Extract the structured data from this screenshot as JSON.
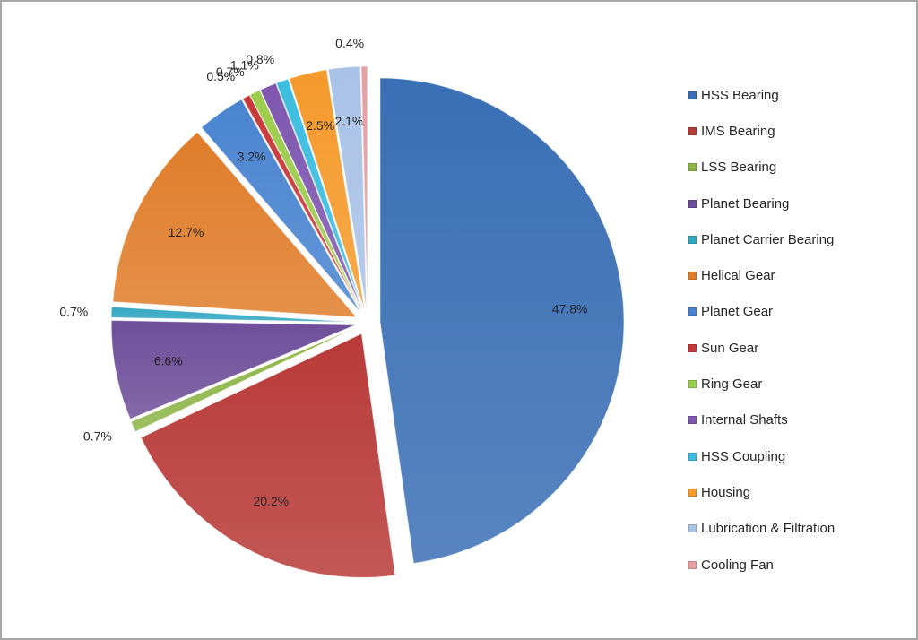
{
  "chart_data": {
    "type": "pie",
    "title": "",
    "start_angle_deg": 0,
    "direction": "clockwise",
    "exploded": true,
    "legend_position": "right",
    "categories": [
      "HSS Bearing",
      "IMS Bearing",
      "LSS Bearing",
      "Planet Bearing",
      "Planet Carrier Bearing",
      "Helical Gear",
      "Planet Gear",
      "Sun Gear",
      "Ring Gear",
      "Internal Shafts",
      "HSS Coupling",
      "Housing",
      "Lubrication & Filtration",
      "Cooling Fan"
    ],
    "values": [
      47.8,
      20.2,
      0.7,
      6.6,
      0.7,
      12.7,
      3.2,
      0.5,
      0.7,
      1.1,
      0.8,
      2.5,
      2.1,
      0.4
    ],
    "labels": [
      "47.8%",
      "20.2%",
      "0.7%",
      "6.6%",
      "0.7%",
      "12.7%",
      "3.2%",
      "0.5%",
      "0.7%",
      "1.1%",
      "0.8%",
      "2.5%",
      "2.1%",
      "0.4%"
    ],
    "colors": [
      "#3a6fb5",
      "#b83a38",
      "#8cb446",
      "#6e4e9a",
      "#32a7c2",
      "#e07d2a",
      "#4a84d0",
      "#c8383a",
      "#9ccc4c",
      "#7f57b0",
      "#3cbde0",
      "#f59a2c",
      "#a9c2e6",
      "#e4a0a2"
    ]
  },
  "legend": {
    "items": [
      {
        "label": "HSS Bearing",
        "color": "#3a6fb5"
      },
      {
        "label": "IMS Bearing",
        "color": "#b83a38"
      },
      {
        "label": "LSS Bearing",
        "color": "#8cb446"
      },
      {
        "label": "Planet Bearing",
        "color": "#6e4e9a"
      },
      {
        "label": "Planet Carrier Bearing",
        "color": "#32a7c2"
      },
      {
        "label": "Helical Gear",
        "color": "#e07d2a"
      },
      {
        "label": "Planet Gear",
        "color": "#4a84d0"
      },
      {
        "label": "Sun Gear",
        "color": "#c8383a"
      },
      {
        "label": "Ring Gear",
        "color": "#9ccc4c"
      },
      {
        "label": "Internal Shafts",
        "color": "#7f57b0"
      },
      {
        "label": "HSS Coupling",
        "color": "#3cbde0"
      },
      {
        "label": "Housing",
        "color": "#f59a2c"
      },
      {
        "label": "Lubrication & Filtration",
        "color": "#a9c2e6"
      },
      {
        "label": "Cooling Fan",
        "color": "#e4a0a2"
      }
    ]
  }
}
